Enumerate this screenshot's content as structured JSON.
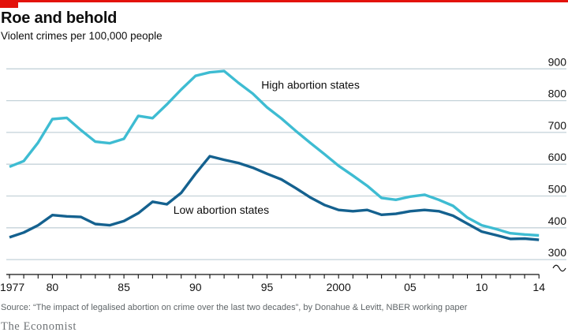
{
  "header": {
    "title": "Roe and behold",
    "subtitle": "Violent crimes per 100,000 people"
  },
  "chart_data": {
    "type": "line",
    "title": "Roe and behold",
    "subtitle": "Violent crimes per 100,000 people",
    "x_start": 1977,
    "x_end": 2014,
    "years": [
      1977,
      1978,
      1979,
      1980,
      1981,
      1982,
      1983,
      1984,
      1985,
      1986,
      1987,
      1988,
      1989,
      1990,
      1991,
      1992,
      1993,
      1994,
      1995,
      1996,
      1997,
      1998,
      1999,
      2000,
      2001,
      2002,
      2003,
      2004,
      2005,
      2006,
      2007,
      2008,
      2009,
      2010,
      2011,
      2012,
      2013,
      2014
    ],
    "ylim": [
      300,
      900
    ],
    "y_ticks": [
      300,
      400,
      500,
      600,
      700,
      800,
      900
    ],
    "grid": "horizontal",
    "legend_position": "inline-labels",
    "axis_break": true,
    "x_tick_labels": [
      {
        "year": 1977,
        "label": "1977",
        "align": "start"
      },
      {
        "year": 1980,
        "label": "80"
      },
      {
        "year": 1985,
        "label": "85"
      },
      {
        "year": 1990,
        "label": "90"
      },
      {
        "year": 1995,
        "label": "95"
      },
      {
        "year": 2000,
        "label": "2000"
      },
      {
        "year": 2005,
        "label": "05"
      },
      {
        "year": 2010,
        "label": "10"
      },
      {
        "year": 2014,
        "label": "14"
      }
    ],
    "series": [
      {
        "name": "High abortion states",
        "color": "#3EBCD2",
        "values": [
          592,
          610,
          668,
          742,
          746,
          707,
          671,
          666,
          680,
          752,
          745,
          788,
          835,
          878,
          889,
          893,
          856,
          822,
          779,
          744,
          705,
          668,
          632,
          595,
          564,
          532,
          494,
          488,
          498,
          504,
          488,
          469,
          432,
          408,
          396,
          383,
          379,
          376
        ]
      },
      {
        "name": "Low abortion states",
        "color": "#14618F",
        "values": [
          370,
          385,
          408,
          440,
          436,
          434,
          412,
          408,
          421,
          446,
          482,
          474,
          510,
          570,
          625,
          614,
          604,
          589,
          570,
          552,
          525,
          496,
          472,
          456,
          452,
          456,
          441,
          444,
          452,
          456,
          452,
          438,
          413,
          388,
          377,
          365,
          366,
          362
        ]
      }
    ],
    "annotations": [
      {
        "text": "High abortion states",
        "year": 1994.6,
        "value": 850
      },
      {
        "text": "Low abortion states",
        "year": 1988.45,
        "value": 456
      }
    ]
  },
  "source": {
    "text": "Source: “The impact of legalised abortion on crime over the last two decades”, by Donahue & Levitt, NBER working paper"
  },
  "footer": {
    "brand": "The Economist"
  },
  "colors": {
    "accent_red": "#E3120B",
    "high_line": "#3EBCD2",
    "low_line": "#14618F",
    "gridline": "#C4D2D9",
    "axis": "#121212",
    "text": "#0D0D0D",
    "muted": "#5F6568"
  }
}
